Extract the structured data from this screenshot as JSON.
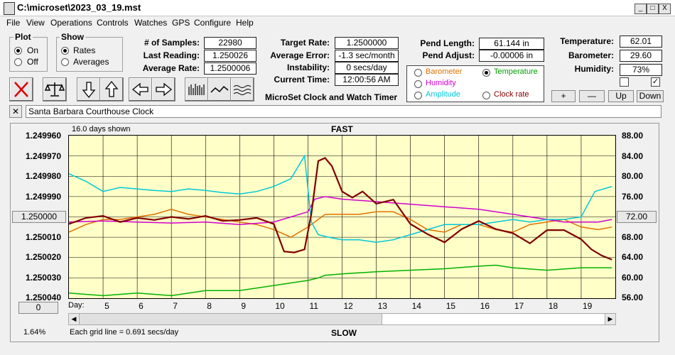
{
  "window": {
    "title": "C:\\microset\\2023_03_19.mst",
    "min": "_",
    "max": "□",
    "close": "X"
  },
  "menu": [
    "File",
    "View",
    "Operations",
    "Controls",
    "Watches",
    "GPS",
    "Configure",
    "Help"
  ],
  "plot_group": {
    "title": "Plot",
    "on": "On",
    "off": "Off",
    "selected": "On"
  },
  "show_group": {
    "title": "Show",
    "rates": "Rates",
    "averages": "Averages",
    "selected": "Rates"
  },
  "stats": {
    "samples_label": "# of Samples:",
    "samples": "22980",
    "last_label": "Last Reading:",
    "last": "1.250026",
    "avg_rate_label": "Average Rate:",
    "avg_rate": "1.2500006",
    "target_label": "Target Rate:",
    "target": "1.2500000",
    "avg_err_label": "Average Error:",
    "avg_err": "-1.3 sec/month",
    "instab_label": "Instability:",
    "instab": "0 secs/day",
    "time_label": "Current Time:",
    "time": "12:00:56 AM",
    "app_name": "MicroSet Clock and Watch Timer",
    "pend_len_label": "Pend Length:",
    "pend_len": "61.144 in",
    "pend_adj_label": "Pend Adjust:",
    "pend_adj": "-0.00006 in",
    "temp_label": "Temperature:",
    "temp": "62.01",
    "baro_label": "Barometer:",
    "baro": "29.60",
    "humid_label": "Humidity:",
    "humid": "73%"
  },
  "sensors": {
    "barometer": "Barometer",
    "humidity": "Humidity",
    "amplitude": "Amplitude",
    "temperature": "Temperature",
    "clock_rate": "Clock rate",
    "selected": "Temperature",
    "colors": {
      "barometer": "#e07000",
      "humidity": "#d000d0",
      "amplitude": "#00c8d8",
      "temperature": "#00b000",
      "clock_rate": "#800000"
    }
  },
  "adjust_buttons": {
    "plus": "+",
    "minus": "—",
    "up": "Up",
    "down": "Down"
  },
  "checkboxes": {
    "left": false,
    "right": true
  },
  "watch_name": "Santa Barbara Courthouse Clock",
  "plot": {
    "days_shown": "16.0 days shown",
    "fast": "FAST",
    "slow": "SLOW",
    "center_button": "1.250000",
    "right_button": "72.00",
    "zero_button": "0",
    "percent": "1.64%",
    "grid_note": "Each grid line = 0.691 secs/day",
    "day_label": "Day:",
    "y_left": [
      "1.249960",
      "1.249970",
      "1.249980",
      "1.249990",
      "1.250000",
      "1.250010",
      "1.250020",
      "1.250030",
      "1.250040"
    ],
    "y_right": [
      "88.00",
      "84.00",
      "80.00",
      "76.00",
      "72.00",
      "68.00",
      "64.00",
      "60.00",
      "56.00"
    ],
    "x_days": [
      "5",
      "6",
      "7",
      "8",
      "9",
      "10",
      "11",
      "12",
      "13",
      "14",
      "15",
      "16",
      "17",
      "18",
      "19"
    ]
  },
  "chart_data": {
    "type": "line",
    "x_label": "Day:",
    "xlim": [
      4.0,
      20.0
    ],
    "ylim_left": [
      1.24996,
      1.25004
    ],
    "ylim_right": [
      56.0,
      88.0
    ],
    "grid": true,
    "series": [
      {
        "name": "Clock rate",
        "color": "#800000",
        "axis": "left",
        "x": [
          4.0,
          4.5,
          5.0,
          5.5,
          6.0,
          6.5,
          7.0,
          7.5,
          8.0,
          8.5,
          9.0,
          9.5,
          10.0,
          10.3,
          10.6,
          10.9,
          11.1,
          11.3,
          11.5,
          11.7,
          12.0,
          12.3,
          12.6,
          13.0,
          13.5,
          14.0,
          14.5,
          15.0,
          15.5,
          16.0,
          16.5,
          17.0,
          17.5,
          18.0,
          18.5,
          19.0,
          19.3,
          19.6,
          19.9
        ],
        "y": [
          1.2500035,
          1.2500005,
          1.2499995,
          1.2500025,
          1.2500005,
          1.2500015,
          1.25,
          1.250001,
          1.2499995,
          1.250002,
          1.2500015,
          1.2500005,
          1.2500035,
          1.250017,
          1.2500175,
          1.250016,
          1.2499985,
          1.2499725,
          1.249971,
          1.249975,
          1.2499875,
          1.2499905,
          1.2499875,
          1.2499935,
          1.2499915,
          1.2500035,
          1.2500085,
          1.2500125,
          1.250006,
          1.250002,
          1.250006,
          1.250008,
          1.250013,
          1.2500065,
          1.2500065,
          1.250011,
          1.250016,
          1.250019,
          1.250021
        ]
      },
      {
        "name": "Amplitude",
        "color": "#00c8d8",
        "axis": "right",
        "x": [
          4.0,
          4.5,
          5.0,
          5.5,
          6.0,
          6.5,
          7.0,
          7.5,
          8.0,
          8.5,
          9.0,
          9.5,
          10.0,
          10.5,
          10.9,
          11.1,
          11.3,
          11.6,
          12.0,
          12.5,
          13.0,
          13.5,
          14.0,
          14.5,
          15.0,
          15.5,
          16.0,
          16.5,
          17.0,
          17.5,
          18.0,
          18.5,
          19.0,
          19.4,
          19.9
        ],
        "y": [
          80.5,
          79.0,
          77.0,
          77.8,
          77.5,
          77.2,
          77.0,
          77.5,
          77.2,
          76.8,
          76.5,
          77.0,
          78.0,
          79.5,
          84.0,
          71.0,
          68.5,
          68.0,
          67.5,
          67.5,
          67.0,
          67.5,
          68.5,
          69.5,
          70.5,
          70.5,
          70.5,
          71.0,
          71.5,
          71.0,
          71.5,
          71.5,
          72.0,
          77.0,
          78.0
        ]
      },
      {
        "name": "Barometer",
        "color": "#e07000",
        "axis": "right",
        "x": [
          4.0,
          4.5,
          5.0,
          5.5,
          6.0,
          6.5,
          7.0,
          7.5,
          8.0,
          8.5,
          9.0,
          9.5,
          10.0,
          10.5,
          11.0,
          11.5,
          12.0,
          12.5,
          13.0,
          13.5,
          14.0,
          14.5,
          15.0,
          15.5,
          16.0,
          16.5,
          17.0,
          17.5,
          18.0,
          18.5,
          19.0,
          19.5,
          19.9
        ],
        "y": [
          69.0,
          70.5,
          71.5,
          71.5,
          72.0,
          72.5,
          73.5,
          72.5,
          72.0,
          71.5,
          71.0,
          70.5,
          69.5,
          68.0,
          70.0,
          72.5,
          72.5,
          72.5,
          73.0,
          73.0,
          71.5,
          69.5,
          69.0,
          70.5,
          70.5,
          69.5,
          69.0,
          70.5,
          71.0,
          71.5,
          70.0,
          69.5,
          70.0
        ]
      },
      {
        "name": "Humidity",
        "color": "#d000d0",
        "axis": "right",
        "x": [
          4.0,
          5.0,
          6.0,
          7.0,
          8.0,
          9.0,
          10.0,
          10.5,
          11.0,
          11.2,
          11.5,
          12.0,
          13.0,
          14.0,
          15.0,
          16.0,
          17.0,
          18.0,
          18.5,
          19.0,
          19.5,
          19.9
        ],
        "y": [
          71.0,
          71.2,
          71.0,
          70.8,
          71.0,
          70.5,
          71.0,
          72.0,
          73.0,
          75.5,
          76.0,
          75.5,
          75.0,
          74.5,
          74.0,
          73.5,
          72.5,
          71.5,
          71.0,
          71.0,
          71.0,
          71.5
        ]
      },
      {
        "name": "Temperature",
        "color": "#00b000",
        "axis": "right",
        "x": [
          4.0,
          5.0,
          6.0,
          7.0,
          8.0,
          9.0,
          10.0,
          10.5,
          11.0,
          11.3,
          11.5,
          12.0,
          13.0,
          14.0,
          15.0,
          16.0,
          16.5,
          17.0,
          18.0,
          19.0,
          19.9
        ],
        "y": [
          57.0,
          56.5,
          57.0,
          56.5,
          57.5,
          57.5,
          58.5,
          59.0,
          59.5,
          60.0,
          60.5,
          60.8,
          61.2,
          61.5,
          61.8,
          62.3,
          62.5,
          62.0,
          61.5,
          62.0,
          62.0
        ]
      }
    ]
  }
}
